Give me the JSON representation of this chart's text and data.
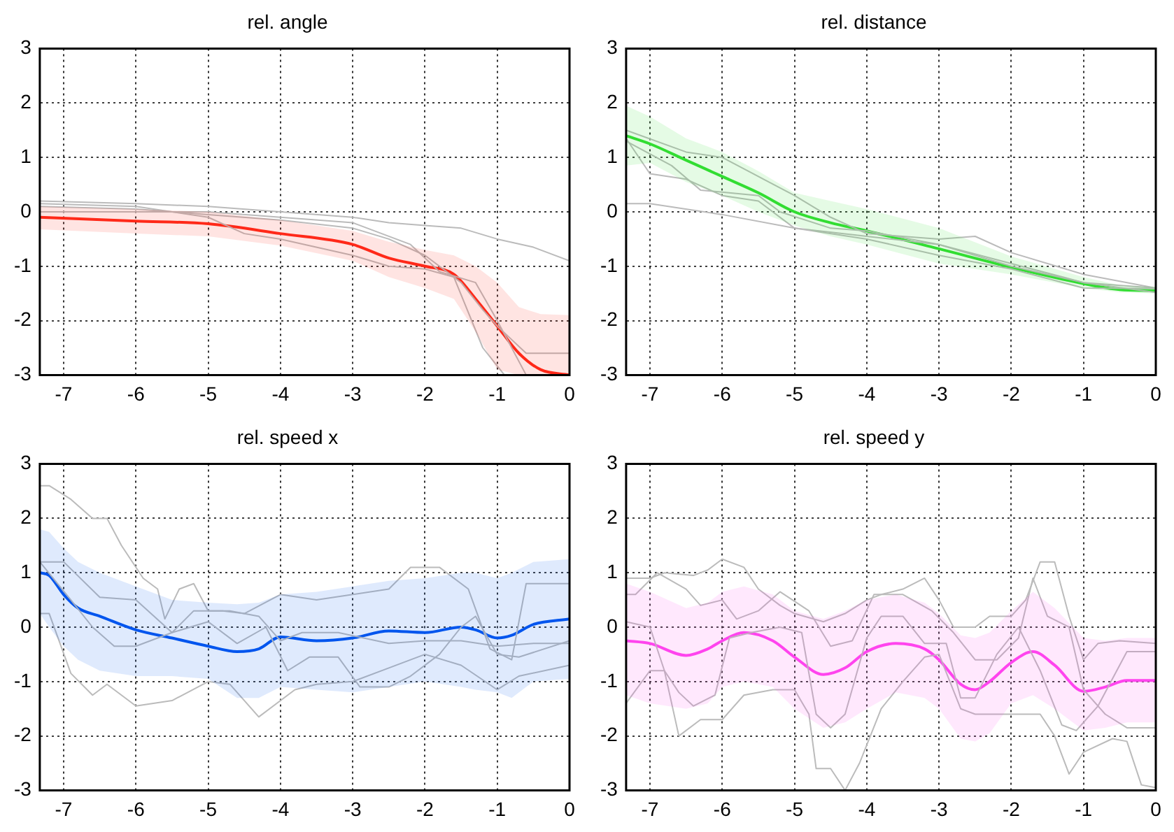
{
  "chart_data": [
    {
      "type": "line",
      "title": "rel. angle",
      "xlim": [
        -7.33,
        0
      ],
      "ylim": [
        -3,
        3
      ],
      "xticks": [
        -7,
        -6,
        -5,
        -4,
        -3,
        -2,
        -1,
        0
      ],
      "yticks": [
        -3,
        -2,
        -1,
        0,
        1,
        2,
        3
      ],
      "grid": true,
      "legend": false,
      "series": [
        {
          "color": "#bbbbbb",
          "x": [
            -7.33,
            -6,
            -5,
            -4,
            -3,
            -2.5,
            -2,
            -1.5,
            -1,
            -0.5,
            0
          ],
          "values": [
            0.2,
            0.15,
            0.1,
            0.0,
            -0.1,
            -0.2,
            -0.25,
            -0.3,
            -0.5,
            -0.65,
            -0.9
          ]
        },
        {
          "color": "#bbbbbb",
          "x": [
            -7.33,
            -6,
            -5,
            -4,
            -3,
            -2.5,
            -2,
            -1.5,
            -1.2,
            -1,
            -0.6,
            0
          ],
          "values": [
            0.1,
            0.05,
            -0.05,
            -0.15,
            -0.3,
            -0.5,
            -0.8,
            -1.3,
            -1.8,
            -2.1,
            -2.6,
            -2.6
          ]
        },
        {
          "color": "#bbbbbb",
          "x": [
            -7.33,
            -6,
            -5,
            -4.5,
            -4,
            -3,
            -2.5,
            -2,
            -1.6,
            -1.2,
            -0.9
          ],
          "values": [
            0.15,
            0.1,
            -0.1,
            -0.4,
            -0.5,
            -0.8,
            -1.0,
            -1.05,
            -1.2,
            -2.5,
            -3.0
          ]
        },
        {
          "color": "#bbbbbb",
          "x": [
            -7.33,
            -5,
            -3,
            -2.2,
            -1.8,
            -1.3,
            -1,
            -0.6
          ],
          "values": [
            0.0,
            0.0,
            -0.2,
            -0.6,
            -1.1,
            -1.3,
            -2.0,
            -3.0
          ]
        },
        {
          "color": "#ff2a1a",
          "x": [
            -7.33,
            -6,
            -5,
            -4,
            -3,
            -2.5,
            -2,
            -1.6,
            -1.3,
            -1,
            -0.7,
            -0.4,
            0
          ],
          "values": [
            -0.1,
            -0.17,
            -0.22,
            -0.4,
            -0.6,
            -0.85,
            -1.0,
            -1.15,
            -1.6,
            -2.1,
            -2.6,
            -2.9,
            -3.0
          ],
          "lower": [
            -0.32,
            -0.4,
            -0.45,
            -0.62,
            -0.9,
            -1.2,
            -1.4,
            -1.6,
            -2.2,
            -2.9,
            -3.0,
            -3.0,
            -3.0
          ],
          "upper": [
            0.1,
            0.05,
            0.0,
            -0.15,
            -0.35,
            -0.55,
            -0.7,
            -0.8,
            -1.0,
            -1.3,
            -1.75,
            -1.88,
            -1.9
          ]
        }
      ]
    },
    {
      "type": "line",
      "title": "rel. distance",
      "xlim": [
        -7.33,
        0
      ],
      "ylim": [
        -3,
        3
      ],
      "xticks": [
        -7,
        -6,
        -5,
        -4,
        -3,
        -2,
        -1,
        0
      ],
      "yticks": [
        -3,
        -2,
        -1,
        0,
        1,
        2,
        3
      ],
      "grid": true,
      "legend": false,
      "series": [
        {
          "color": "#bbbbbb",
          "x": [
            -7.33,
            -6.5,
            -6,
            -5.5,
            -5,
            -4.5,
            -4,
            -3,
            -2.5,
            -2,
            -1,
            0
          ],
          "values": [
            1.5,
            1.1,
            1.0,
            0.65,
            0.3,
            -0.1,
            -0.4,
            -0.5,
            -0.45,
            -0.75,
            -1.15,
            -1.4
          ]
        },
        {
          "color": "#bbbbbb",
          "x": [
            -7.33,
            -7,
            -6.5,
            -6,
            -5.5,
            -5,
            -4,
            -3,
            -2,
            -1,
            0
          ],
          "values": [
            1.35,
            0.7,
            0.6,
            0.3,
            0.2,
            -0.3,
            -0.5,
            -0.8,
            -1.05,
            -1.4,
            -1.41
          ]
        },
        {
          "color": "#bbbbbb",
          "x": [
            -7.33,
            -7,
            -6,
            -5,
            -4,
            -3,
            -2,
            -1,
            0
          ],
          "values": [
            0.15,
            0.15,
            -0.05,
            -0.3,
            -0.45,
            -0.6,
            -0.95,
            -1.3,
            -1.4
          ]
        },
        {
          "color": "#bbbbbb",
          "x": [
            -7.33,
            -6.7,
            -6.3,
            -5.5,
            -5.2,
            -4.5,
            -4,
            -3,
            -2,
            -1,
            0
          ],
          "values": [
            1.3,
            0.85,
            0.4,
            0.3,
            0.0,
            -0.3,
            -0.35,
            -0.6,
            -1.0,
            -1.3,
            -1.48
          ]
        },
        {
          "color": "#33dd33",
          "x": [
            -7.33,
            -7,
            -6.5,
            -6,
            -5.5,
            -5,
            -4.5,
            -4,
            -3,
            -2,
            -1,
            -0.5,
            0
          ],
          "values": [
            1.4,
            1.25,
            0.95,
            0.65,
            0.35,
            0.0,
            -0.2,
            -0.35,
            -0.68,
            -1.02,
            -1.32,
            -1.43,
            -1.45
          ],
          "lower": [
            0.85,
            0.9,
            0.55,
            0.3,
            0.0,
            -0.25,
            -0.45,
            -0.6,
            -0.95,
            -1.15,
            -1.4,
            -1.48,
            -1.5
          ],
          "upper": [
            1.95,
            1.75,
            1.35,
            1.1,
            0.75,
            0.35,
            0.2,
            0.05,
            -0.3,
            -0.82,
            -1.2,
            -1.35,
            -1.38
          ]
        }
      ]
    },
    {
      "type": "line",
      "title": "rel. speed x",
      "xlim": [
        -7.33,
        0
      ],
      "ylim": [
        -3,
        3
      ],
      "xticks": [
        -7,
        -6,
        -5,
        -4,
        -3,
        -2,
        -1,
        0
      ],
      "yticks": [
        -3,
        -2,
        -1,
        0,
        1,
        2,
        3
      ],
      "grid": true,
      "legend": false,
      "series": [
        {
          "color": "#bbbbbb",
          "x": [
            -7.33,
            -7.2,
            -6.9,
            -6.6,
            -6.4,
            -6.2,
            -5.9,
            -5.7,
            -5.6,
            -5.4,
            -5.2,
            -5,
            -4.8,
            -4.5,
            -4,
            -3.5,
            -3,
            -2.5,
            -2.2,
            -1.8,
            -1.4,
            -1.1,
            -0.8,
            -0.6,
            0
          ],
          "values": [
            2.6,
            2.6,
            2.35,
            2.0,
            2.0,
            1.5,
            0.9,
            0.7,
            0.15,
            0.7,
            0.8,
            0.3,
            0.3,
            0.25,
            0.6,
            0.5,
            0.6,
            0.7,
            1.1,
            1.1,
            0.7,
            -0.4,
            -0.6,
            0.8,
            0.8
          ]
        },
        {
          "color": "#bbbbbb",
          "x": [
            -7.33,
            -7,
            -6.5,
            -6,
            -5.5,
            -5.2,
            -4.7,
            -4.3,
            -4,
            -3.7,
            -3.2,
            -2.5,
            -2,
            -1.5,
            -1,
            -0.5,
            0
          ],
          "values": [
            1.2,
            1.2,
            0.55,
            0.5,
            -0.1,
            0.3,
            0.3,
            0.2,
            -0.25,
            -0.1,
            -0.1,
            -0.3,
            -0.25,
            -0.25,
            -0.35,
            -0.3,
            -0.3
          ]
        },
        {
          "color": "#bbbbbb",
          "x": [
            -7.33,
            -7.2,
            -6.9,
            -6.6,
            -6.4,
            -6,
            -5.5,
            -5,
            -4.7,
            -4.3,
            -3.8,
            -3.5,
            -3,
            -2.5,
            -2,
            -1.5,
            -1,
            -0.7,
            0
          ],
          "values": [
            0.25,
            0.25,
            -0.85,
            -1.25,
            -1.05,
            -1.45,
            -1.35,
            -1.0,
            -1.05,
            -1.65,
            -1.15,
            -1.05,
            -1.0,
            -0.75,
            -0.5,
            -0.7,
            -1.15,
            -0.9,
            -0.7
          ]
        },
        {
          "color": "#bbbbbb",
          "x": [
            -7.33,
            -6.9,
            -6.6,
            -6.3,
            -6,
            -5.5,
            -5,
            -4.6,
            -4.2,
            -3.9,
            -3.6,
            -3.2,
            -2.9,
            -2.5,
            -2.2,
            -1.8,
            -1.5,
            -1.3,
            -1,
            -0.7,
            0
          ],
          "values": [
            1.2,
            0.5,
            0.0,
            -0.35,
            -0.35,
            -0.1,
            0.1,
            -0.3,
            0.0,
            -0.8,
            -0.55,
            -0.55,
            -1.1,
            -1.1,
            -0.9,
            -0.5,
            0.0,
            0.2,
            -0.5,
            -0.55,
            -0.25
          ]
        },
        {
          "color": "#0055ee",
          "x": [
            -7.33,
            -7.2,
            -7,
            -6.8,
            -6.5,
            -6,
            -5.5,
            -5,
            -4.6,
            -4.3,
            -4,
            -3.5,
            -3,
            -2.5,
            -2,
            -1.5,
            -1.3,
            -1,
            -0.8,
            -0.5,
            0
          ],
          "values": [
            1.0,
            0.95,
            0.6,
            0.35,
            0.2,
            -0.05,
            -0.2,
            -0.35,
            -0.45,
            -0.4,
            -0.18,
            -0.25,
            -0.2,
            -0.07,
            -0.1,
            0.0,
            -0.05,
            -0.2,
            -0.15,
            0.05,
            0.15
          ],
          "lower": [
            0.25,
            0.0,
            -0.35,
            -0.6,
            -0.8,
            -0.9,
            -0.9,
            -0.95,
            -1.3,
            -1.3,
            -1.1,
            -1.15,
            -1.2,
            -1.1,
            -1.0,
            -1.1,
            -1.15,
            -1.2,
            -1.3,
            -1.0,
            -0.95
          ],
          "upper": [
            1.8,
            1.75,
            1.45,
            1.2,
            1.0,
            0.75,
            0.5,
            0.45,
            0.42,
            0.45,
            0.6,
            0.65,
            0.75,
            0.85,
            0.9,
            1.0,
            1.0,
            0.9,
            1.0,
            1.2,
            1.25
          ]
        }
      ]
    },
    {
      "type": "line",
      "title": "rel. speed y",
      "xlim": [
        -7.33,
        0
      ],
      "ylim": [
        -3,
        3
      ],
      "xticks": [
        -7,
        -6,
        -5,
        -4,
        -3,
        -2,
        -1,
        0
      ],
      "yticks": [
        -3,
        -2,
        -1,
        0,
        1,
        2,
        3
      ],
      "grid": true,
      "legend": false,
      "series": [
        {
          "color": "#bbbbbb",
          "x": [
            -7.33,
            -7,
            -6.8,
            -6.4,
            -6.2,
            -6,
            -5.7,
            -5.5,
            -5.2,
            -5,
            -4.6,
            -4.3,
            -4,
            -3.8,
            -3.5,
            -3.2,
            -3,
            -2.8,
            -2.5,
            -2.3,
            -2,
            -1.8,
            -1.6,
            -1.4,
            -1.2,
            -1,
            -0.8,
            -0.5,
            0
          ],
          "values": [
            0.9,
            0.9,
            1.0,
            0.95,
            1.05,
            1.25,
            1.1,
            0.7,
            0.4,
            0.25,
            0.1,
            0.25,
            0.5,
            0.6,
            0.7,
            0.9,
            0.5,
            0.0,
            0.0,
            0.2,
            0.2,
            0.5,
            1.2,
            1.2,
            0.2,
            -0.6,
            -0.3,
            -0.25,
            -0.3
          ]
        },
        {
          "color": "#bbbbbb",
          "x": [
            -7.33,
            -7.2,
            -6.9,
            -6.5,
            -6.3,
            -6,
            -5.8,
            -5.5,
            -5.2,
            -4.8,
            -4.5,
            -4.2,
            -3.9,
            -3.5,
            -3.1,
            -2.8,
            -2.5,
            -2.2,
            -1.9,
            -1.7,
            -1.5,
            -1.2,
            -1,
            -0.7,
            -0.4,
            0
          ],
          "values": [
            0.6,
            0.6,
            1.0,
            0.7,
            0.4,
            0.5,
            0.15,
            0.3,
            0.65,
            0.3,
            -0.35,
            -0.25,
            0.6,
            0.6,
            0.3,
            -0.1,
            -0.6,
            -0.6,
            -0.2,
            0.9,
            0.2,
            0.0,
            -1.15,
            -1.6,
            -1.85,
            -1.85
          ]
        },
        {
          "color": "#bbbbbb",
          "x": [
            -7.33,
            -7,
            -6.8,
            -6.6,
            -6.4,
            -6.1,
            -5.9,
            -5.6,
            -5.2,
            -4.9,
            -4.7,
            -4.5,
            -4.3,
            -4,
            -3.8,
            -3.5,
            -3.2,
            -2.9,
            -2.7,
            -2.5,
            -2.2,
            -1.9,
            -1.6,
            -1.3,
            -1.1,
            -0.8,
            -0.4,
            0
          ],
          "values": [
            0.1,
            0.0,
            -0.8,
            -1.2,
            -1.45,
            -1.25,
            -0.2,
            -0.1,
            0.0,
            -0.1,
            -1.6,
            -1.85,
            -1.6,
            -0.2,
            0.2,
            0.2,
            -0.3,
            -0.3,
            -1.3,
            -1.3,
            -0.5,
            0.0,
            -0.8,
            -1.8,
            -1.9,
            -1.45,
            -0.45,
            -0.45
          ]
        },
        {
          "color": "#bbbbbb",
          "x": [
            -7.33,
            -7,
            -6.8,
            -6.6,
            -6.3,
            -6,
            -5.7,
            -5.3,
            -5,
            -4.8,
            -4.7,
            -4.5,
            -4.3,
            -4.1,
            -3.8,
            -3.5,
            -3.2,
            -3,
            -2.7,
            -2.5,
            -2,
            -1.6,
            -1.4,
            -1.2,
            -1,
            -0.6,
            -0.4,
            -0.2,
            0
          ],
          "values": [
            -1.4,
            -0.8,
            -0.8,
            -2.0,
            -1.7,
            -1.7,
            -1.25,
            -1.15,
            -1.15,
            -1.6,
            -2.6,
            -2.6,
            -3.0,
            -2.5,
            -1.5,
            -1.0,
            -0.55,
            -0.5,
            -1.5,
            -1.6,
            -1.6,
            -1.6,
            -2.0,
            -2.7,
            -2.3,
            -2.05,
            -2.1,
            -2.9,
            -2.95
          ]
        },
        {
          "color": "#ff44ee",
          "x": [
            -7.33,
            -7,
            -6.5,
            -6.2,
            -6,
            -5.7,
            -5.3,
            -5,
            -4.6,
            -4.3,
            -4,
            -3.6,
            -3.2,
            -3,
            -2.7,
            -2.5,
            -2.3,
            -2,
            -1.7,
            -1.4,
            -1,
            -0.7,
            -0.4,
            0
          ],
          "values": [
            -0.25,
            -0.3,
            -0.52,
            -0.4,
            -0.25,
            -0.1,
            -0.25,
            -0.55,
            -0.87,
            -0.75,
            -0.45,
            -0.3,
            -0.4,
            -0.6,
            -1.05,
            -1.15,
            -1.0,
            -0.65,
            -0.45,
            -0.7,
            -1.18,
            -1.1,
            -0.98,
            -0.98
          ],
          "lower": [
            -1.25,
            -1.4,
            -1.5,
            -1.4,
            -1.1,
            -1.0,
            -1.1,
            -1.5,
            -1.85,
            -1.75,
            -1.5,
            -1.2,
            -1.3,
            -1.5,
            -2.05,
            -2.1,
            -1.95,
            -1.4,
            -1.25,
            -1.5,
            -1.9,
            -1.85,
            -1.75,
            -1.75
          ],
          "upper": [
            0.8,
            0.65,
            0.35,
            0.45,
            0.65,
            0.75,
            0.6,
            0.3,
            0.15,
            0.3,
            0.5,
            0.6,
            0.45,
            0.25,
            -0.15,
            -0.2,
            -0.1,
            0.3,
            0.65,
            0.35,
            -0.2,
            -0.25,
            -0.2,
            -0.2
          ]
        }
      ]
    }
  ]
}
